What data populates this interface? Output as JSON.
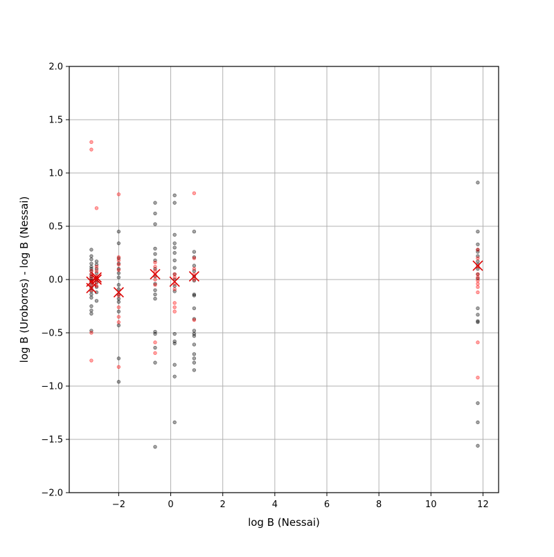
{
  "chart_data": {
    "type": "scatter",
    "xlabel": "log B (Nessai)",
    "ylabel": "log B (Uroboros) - log B (Nessai)",
    "xlim": [
      -3.9,
      12.6
    ],
    "ylim": [
      -2.0,
      2.0
    ],
    "xticks": [
      -2,
      0,
      2,
      4,
      6,
      8,
      10,
      12
    ],
    "yticks": [
      -2.0,
      -1.5,
      -1.0,
      -0.5,
      0.0,
      0.5,
      1.0,
      1.5,
      2.0
    ],
    "xtick_labels": [
      "−2",
      "0",
      "2",
      "4",
      "6",
      "8",
      "10",
      "12"
    ],
    "ytick_labels": [
      "−2.0",
      "−1.5",
      "−1.0",
      "−0.5",
      "0.0",
      "0.5",
      "1.0",
      "1.5",
      "2.0"
    ],
    "grid": true,
    "colors": {
      "black_points": "#000000",
      "red_points": "#ff0000",
      "means": "#dd0000",
      "grid": "#b0b0b0",
      "axes": "#000000"
    },
    "series": [
      {
        "color": "#000000",
        "marker": "circle",
        "points": [
          [
            -3.05,
            0.28
          ],
          [
            -3.05,
            0.22
          ],
          [
            -3.05,
            0.19
          ],
          [
            -3.05,
            0.15
          ],
          [
            -3.05,
            0.1
          ],
          [
            -3.05,
            0.08
          ],
          [
            -3.05,
            0.05
          ],
          [
            -3.05,
            0.03
          ],
          [
            -3.05,
            0.01
          ],
          [
            -3.05,
            -0.02
          ],
          [
            -3.05,
            -0.05
          ],
          [
            -3.05,
            -0.08
          ],
          [
            -3.05,
            -0.11
          ],
          [
            -3.05,
            -0.14
          ],
          [
            -3.05,
            -0.17
          ],
          [
            -3.05,
            -0.25
          ],
          [
            -3.05,
            -0.29
          ],
          [
            -3.05,
            -0.32
          ],
          [
            -3.05,
            -0.48
          ],
          [
            -3.05,
            0.12
          ],
          [
            -3.05,
            -0.01
          ],
          [
            -2.85,
            0.17
          ],
          [
            -2.85,
            0.14
          ],
          [
            -2.85,
            0.1
          ],
          [
            -2.85,
            0.06
          ],
          [
            -2.85,
            0.02
          ],
          [
            -2.85,
            -0.03
          ],
          [
            -2.85,
            -0.07
          ],
          [
            -2.85,
            -0.12
          ],
          [
            -2.85,
            -0.2
          ],
          [
            -2.85,
            0.0
          ],
          [
            -2.0,
            0.45
          ],
          [
            -2.0,
            0.34
          ],
          [
            -2.0,
            0.2
          ],
          [
            -2.0,
            0.15
          ],
          [
            -2.0,
            0.1
          ],
          [
            -2.0,
            0.06
          ],
          [
            -2.0,
            0.02
          ],
          [
            -2.0,
            -0.05
          ],
          [
            -2.0,
            -0.09
          ],
          [
            -2.0,
            -0.14
          ],
          [
            -2.0,
            -0.21
          ],
          [
            -2.0,
            -0.3
          ],
          [
            -2.0,
            -0.43
          ],
          [
            -2.0,
            -0.74
          ],
          [
            -2.0,
            -0.96
          ],
          [
            -2.0,
            -0.18
          ],
          [
            -0.6,
            0.72
          ],
          [
            -0.6,
            0.62
          ],
          [
            -0.6,
            0.52
          ],
          [
            -0.6,
            0.29
          ],
          [
            -0.6,
            0.24
          ],
          [
            -0.6,
            0.18
          ],
          [
            -0.6,
            0.1
          ],
          [
            -0.6,
            0.03
          ],
          [
            -0.6,
            -0.04
          ],
          [
            -0.6,
            -0.1
          ],
          [
            -0.6,
            -0.14
          ],
          [
            -0.6,
            -0.18
          ],
          [
            -0.6,
            -0.49
          ],
          [
            -0.6,
            -0.51
          ],
          [
            -0.6,
            -0.64
          ],
          [
            -0.6,
            -0.78
          ],
          [
            -0.6,
            -1.57
          ],
          [
            0.15,
            0.79
          ],
          [
            0.15,
            0.72
          ],
          [
            0.15,
            0.42
          ],
          [
            0.15,
            0.34
          ],
          [
            0.15,
            0.3
          ],
          [
            0.15,
            0.25
          ],
          [
            0.15,
            0.18
          ],
          [
            0.15,
            0.11
          ],
          [
            0.15,
            0.05
          ],
          [
            0.15,
            0.0
          ],
          [
            0.15,
            -0.06
          ],
          [
            0.15,
            -0.11
          ],
          [
            0.15,
            -0.51
          ],
          [
            0.15,
            -0.58
          ],
          [
            0.15,
            -0.6
          ],
          [
            0.15,
            -0.8
          ],
          [
            0.15,
            -0.91
          ],
          [
            0.15,
            -1.34
          ],
          [
            0.9,
            0.45
          ],
          [
            0.9,
            0.26
          ],
          [
            0.9,
            0.21
          ],
          [
            0.9,
            0.13
          ],
          [
            0.9,
            0.08
          ],
          [
            0.9,
            0.03
          ],
          [
            0.9,
            -0.01
          ],
          [
            0.9,
            -0.14
          ],
          [
            0.9,
            -0.15
          ],
          [
            0.9,
            -0.27
          ],
          [
            0.9,
            -0.37
          ],
          [
            0.9,
            -0.48
          ],
          [
            0.9,
            -0.51
          ],
          [
            0.9,
            -0.53
          ],
          [
            0.9,
            -0.61
          ],
          [
            0.9,
            -0.7
          ],
          [
            0.9,
            -0.74
          ],
          [
            0.9,
            -0.78
          ],
          [
            0.9,
            -0.85
          ],
          [
            11.8,
            0.91
          ],
          [
            11.8,
            0.45
          ],
          [
            11.8,
            0.33
          ],
          [
            11.8,
            0.28
          ],
          [
            11.8,
            0.26
          ],
          [
            11.8,
            0.22
          ],
          [
            11.8,
            0.17
          ],
          [
            11.8,
            0.14
          ],
          [
            11.8,
            0.1
          ],
          [
            11.8,
            0.05
          ],
          [
            11.8,
            0.01
          ],
          [
            11.8,
            -0.27
          ],
          [
            11.8,
            -0.33
          ],
          [
            11.8,
            -0.39
          ],
          [
            11.8,
            -0.4
          ],
          [
            11.8,
            -1.16
          ],
          [
            11.8,
            -1.34
          ],
          [
            11.8,
            -1.56
          ]
        ]
      },
      {
        "color": "#ff0000",
        "marker": "circle",
        "points": [
          [
            -3.05,
            1.29
          ],
          [
            -3.05,
            1.22
          ],
          [
            -3.05,
            0.08
          ],
          [
            -3.05,
            0.05
          ],
          [
            -3.05,
            0.02
          ],
          [
            -3.05,
            -0.02
          ],
          [
            -3.05,
            -0.06
          ],
          [
            -3.05,
            -0.1
          ],
          [
            -3.05,
            -0.5
          ],
          [
            -3.05,
            -0.76
          ],
          [
            -2.85,
            0.67
          ],
          [
            -2.85,
            0.12
          ],
          [
            -2.85,
            0.08
          ],
          [
            -2.85,
            0.03
          ],
          [
            -2.85,
            -0.02
          ],
          [
            -2.85,
            -0.06
          ],
          [
            -2.0,
            0.8
          ],
          [
            -2.0,
            0.21
          ],
          [
            -2.0,
            0.18
          ],
          [
            -2.0,
            0.14
          ],
          [
            -2.0,
            0.09
          ],
          [
            -2.0,
            -0.15
          ],
          [
            -2.0,
            -0.26
          ],
          [
            -2.0,
            -0.35
          ],
          [
            -2.0,
            -0.4
          ],
          [
            -2.0,
            -0.82
          ],
          [
            -0.6,
            0.16
          ],
          [
            -0.6,
            0.12
          ],
          [
            -0.6,
            0.08
          ],
          [
            -0.6,
            0.04
          ],
          [
            -0.6,
            0.0
          ],
          [
            -0.6,
            -0.05
          ],
          [
            -0.6,
            -0.59
          ],
          [
            -0.6,
            -0.69
          ],
          [
            0.15,
            0.05
          ],
          [
            0.15,
            0.02
          ],
          [
            0.15,
            -0.04
          ],
          [
            0.15,
            -0.09
          ],
          [
            0.15,
            -0.22
          ],
          [
            0.15,
            -0.26
          ],
          [
            0.15,
            -0.3
          ],
          [
            0.9,
            0.81
          ],
          [
            0.9,
            0.2
          ],
          [
            0.9,
            0.1
          ],
          [
            0.9,
            0.05
          ],
          [
            0.9,
            0.0
          ],
          [
            0.9,
            -0.38
          ],
          [
            11.8,
            0.28
          ],
          [
            11.8,
            0.2
          ],
          [
            11.8,
            0.12
          ],
          [
            11.8,
            0.05
          ],
          [
            11.8,
            0.02
          ],
          [
            11.8,
            -0.01
          ],
          [
            11.8,
            -0.04
          ],
          [
            11.8,
            -0.07
          ],
          [
            11.8,
            -0.12
          ],
          [
            11.8,
            -0.59
          ],
          [
            11.8,
            -0.92
          ]
        ]
      },
      {
        "color": "#dd0000",
        "marker": "x",
        "points": [
          [
            -3.05,
            -0.02
          ],
          [
            -3.05,
            -0.08
          ],
          [
            -2.85,
            0.02
          ],
          [
            -2.85,
            0.0
          ],
          [
            -2.0,
            -0.12
          ],
          [
            -0.6,
            0.05
          ],
          [
            0.15,
            -0.02
          ],
          [
            0.9,
            0.03
          ],
          [
            11.8,
            0.13
          ]
        ]
      }
    ]
  }
}
